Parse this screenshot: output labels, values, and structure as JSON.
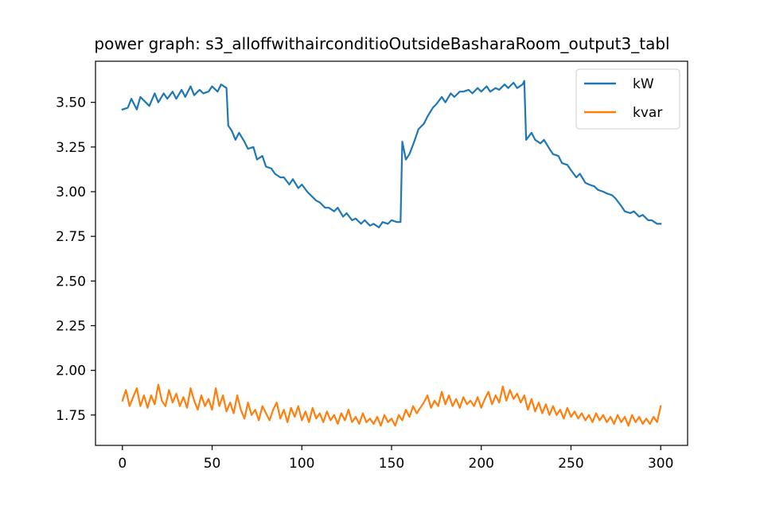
{
  "chart_data": {
    "type": "line",
    "title": "power graph: s3_alloffwithairconditioOutsideBasharaRoom_output3_tabl",
    "xlabel": "",
    "ylabel": "",
    "xlim": [
      -15,
      315
    ],
    "ylim": [
      1.58,
      3.73
    ],
    "xticks": [
      0,
      50,
      100,
      150,
      200,
      250,
      300
    ],
    "xtick_labels": [
      "0",
      "50",
      "100",
      "150",
      "200",
      "250",
      "300"
    ],
    "yticks": [
      1.75,
      2.0,
      2.25,
      2.5,
      2.75,
      3.0,
      3.25,
      3.5
    ],
    "ytick_labels": [
      "1.75",
      "2.00",
      "2.25",
      "2.50",
      "2.75",
      "3.00",
      "3.25",
      "3.50"
    ],
    "grid": false,
    "legend_position": "top-right",
    "series": [
      {
        "name": "kW",
        "color": "#1f77b4",
        "points": [
          [
            0,
            3.46
          ],
          [
            3,
            3.47
          ],
          [
            5,
            3.52
          ],
          [
            8,
            3.46
          ],
          [
            10,
            3.53
          ],
          [
            13,
            3.5
          ],
          [
            15,
            3.48
          ],
          [
            18,
            3.55
          ],
          [
            20,
            3.5
          ],
          [
            23,
            3.55
          ],
          [
            25,
            3.52
          ],
          [
            28,
            3.56
          ],
          [
            30,
            3.52
          ],
          [
            33,
            3.57
          ],
          [
            35,
            3.53
          ],
          [
            38,
            3.59
          ],
          [
            40,
            3.54
          ],
          [
            43,
            3.57
          ],
          [
            45,
            3.55
          ],
          [
            48,
            3.56
          ],
          [
            50,
            3.59
          ],
          [
            53,
            3.56
          ],
          [
            55,
            3.6
          ],
          [
            58,
            3.58
          ],
          [
            59,
            3.37
          ],
          [
            61,
            3.34
          ],
          [
            63,
            3.29
          ],
          [
            65,
            3.33
          ],
          [
            68,
            3.28
          ],
          [
            70,
            3.24
          ],
          [
            73,
            3.25
          ],
          [
            75,
            3.18
          ],
          [
            78,
            3.2
          ],
          [
            80,
            3.14
          ],
          [
            83,
            3.13
          ],
          [
            85,
            3.1
          ],
          [
            88,
            3.08
          ],
          [
            90,
            3.08
          ],
          [
            93,
            3.04
          ],
          [
            95,
            3.07
          ],
          [
            98,
            3.02
          ],
          [
            100,
            3.04
          ],
          [
            103,
            3.0
          ],
          [
            105,
            2.98
          ],
          [
            108,
            2.95
          ],
          [
            110,
            2.94
          ],
          [
            113,
            2.91
          ],
          [
            115,
            2.91
          ],
          [
            118,
            2.89
          ],
          [
            120,
            2.91
          ],
          [
            123,
            2.86
          ],
          [
            125,
            2.88
          ],
          [
            128,
            2.84
          ],
          [
            130,
            2.85
          ],
          [
            133,
            2.82
          ],
          [
            135,
            2.84
          ],
          [
            138,
            2.81
          ],
          [
            140,
            2.82
          ],
          [
            143,
            2.8
          ],
          [
            145,
            2.83
          ],
          [
            148,
            2.82
          ],
          [
            150,
            2.84
          ],
          [
            153,
            2.83
          ],
          [
            155,
            2.83
          ],
          [
            156,
            3.28
          ],
          [
            158,
            3.18
          ],
          [
            160,
            3.21
          ],
          [
            163,
            3.29
          ],
          [
            165,
            3.35
          ],
          [
            168,
            3.38
          ],
          [
            170,
            3.42
          ],
          [
            173,
            3.47
          ],
          [
            175,
            3.49
          ],
          [
            178,
            3.53
          ],
          [
            180,
            3.5
          ],
          [
            183,
            3.55
          ],
          [
            185,
            3.53
          ],
          [
            188,
            3.56
          ],
          [
            190,
            3.56
          ],
          [
            193,
            3.57
          ],
          [
            195,
            3.55
          ],
          [
            198,
            3.58
          ],
          [
            200,
            3.56
          ],
          [
            203,
            3.59
          ],
          [
            205,
            3.56
          ],
          [
            208,
            3.58
          ],
          [
            210,
            3.57
          ],
          [
            213,
            3.6
          ],
          [
            215,
            3.58
          ],
          [
            218,
            3.61
          ],
          [
            220,
            3.58
          ],
          [
            223,
            3.6
          ],
          [
            224,
            3.62
          ],
          [
            225,
            3.29
          ],
          [
            228,
            3.33
          ],
          [
            230,
            3.29
          ],
          [
            233,
            3.27
          ],
          [
            235,
            3.29
          ],
          [
            238,
            3.24
          ],
          [
            240,
            3.21
          ],
          [
            243,
            3.2
          ],
          [
            245,
            3.16
          ],
          [
            248,
            3.15
          ],
          [
            250,
            3.12
          ],
          [
            253,
            3.08
          ],
          [
            255,
            3.1
          ],
          [
            258,
            3.05
          ],
          [
            260,
            3.04
          ],
          [
            263,
            3.03
          ],
          [
            265,
            3.01
          ],
          [
            268,
            3.0
          ],
          [
            270,
            2.99
          ],
          [
            273,
            2.98
          ],
          [
            275,
            2.96
          ],
          [
            278,
            2.92
          ],
          [
            280,
            2.89
          ],
          [
            283,
            2.88
          ],
          [
            285,
            2.89
          ],
          [
            288,
            2.86
          ],
          [
            290,
            2.87
          ],
          [
            293,
            2.84
          ],
          [
            295,
            2.84
          ],
          [
            298,
            2.82
          ],
          [
            300,
            2.82
          ]
        ]
      },
      {
        "name": "kvar",
        "color": "#ff7f0e",
        "points": [
          [
            0,
            1.83
          ],
          [
            2,
            1.89
          ],
          [
            4,
            1.8
          ],
          [
            6,
            1.85
          ],
          [
            8,
            1.9
          ],
          [
            10,
            1.8
          ],
          [
            12,
            1.86
          ],
          [
            14,
            1.79
          ],
          [
            16,
            1.86
          ],
          [
            18,
            1.81
          ],
          [
            20,
            1.92
          ],
          [
            22,
            1.83
          ],
          [
            24,
            1.8
          ],
          [
            26,
            1.89
          ],
          [
            28,
            1.82
          ],
          [
            30,
            1.87
          ],
          [
            32,
            1.8
          ],
          [
            34,
            1.85
          ],
          [
            36,
            1.79
          ],
          [
            38,
            1.9
          ],
          [
            40,
            1.83
          ],
          [
            42,
            1.78
          ],
          [
            44,
            1.86
          ],
          [
            46,
            1.8
          ],
          [
            48,
            1.84
          ],
          [
            50,
            1.78
          ],
          [
            52,
            1.9
          ],
          [
            54,
            1.8
          ],
          [
            56,
            1.86
          ],
          [
            58,
            1.77
          ],
          [
            60,
            1.82
          ],
          [
            62,
            1.76
          ],
          [
            64,
            1.86
          ],
          [
            66,
            1.78
          ],
          [
            68,
            1.73
          ],
          [
            70,
            1.82
          ],
          [
            72,
            1.75
          ],
          [
            74,
            1.78
          ],
          [
            76,
            1.72
          ],
          [
            78,
            1.8
          ],
          [
            80,
            1.76
          ],
          [
            82,
            1.72
          ],
          [
            84,
            1.78
          ],
          [
            86,
            1.82
          ],
          [
            88,
            1.73
          ],
          [
            90,
            1.78
          ],
          [
            92,
            1.71
          ],
          [
            94,
            1.79
          ],
          [
            96,
            1.74
          ],
          [
            98,
            1.8
          ],
          [
            100,
            1.72
          ],
          [
            102,
            1.77
          ],
          [
            104,
            1.71
          ],
          [
            106,
            1.79
          ],
          [
            108,
            1.73
          ],
          [
            110,
            1.76
          ],
          [
            112,
            1.71
          ],
          [
            114,
            1.77
          ],
          [
            116,
            1.72
          ],
          [
            118,
            1.75
          ],
          [
            120,
            1.7
          ],
          [
            122,
            1.76
          ],
          [
            124,
            1.72
          ],
          [
            126,
            1.78
          ],
          [
            128,
            1.71
          ],
          [
            130,
            1.74
          ],
          [
            132,
            1.7
          ],
          [
            134,
            1.76
          ],
          [
            136,
            1.71
          ],
          [
            138,
            1.73
          ],
          [
            140,
            1.7
          ],
          [
            142,
            1.74
          ],
          [
            144,
            1.69
          ],
          [
            146,
            1.75
          ],
          [
            148,
            1.71
          ],
          [
            150,
            1.73
          ],
          [
            152,
            1.69
          ],
          [
            154,
            1.75
          ],
          [
            156,
            1.72
          ],
          [
            158,
            1.78
          ],
          [
            160,
            1.74
          ],
          [
            162,
            1.8
          ],
          [
            164,
            1.76
          ],
          [
            166,
            1.79
          ],
          [
            168,
            1.82
          ],
          [
            170,
            1.86
          ],
          [
            172,
            1.79
          ],
          [
            174,
            1.83
          ],
          [
            176,
            1.8
          ],
          [
            178,
            1.88
          ],
          [
            180,
            1.81
          ],
          [
            182,
            1.86
          ],
          [
            184,
            1.8
          ],
          [
            186,
            1.84
          ],
          [
            188,
            1.79
          ],
          [
            190,
            1.85
          ],
          [
            192,
            1.81
          ],
          [
            194,
            1.83
          ],
          [
            196,
            1.8
          ],
          [
            198,
            1.85
          ],
          [
            200,
            1.79
          ],
          [
            202,
            1.84
          ],
          [
            204,
            1.88
          ],
          [
            206,
            1.81
          ],
          [
            208,
            1.86
          ],
          [
            210,
            1.82
          ],
          [
            212,
            1.91
          ],
          [
            214,
            1.83
          ],
          [
            216,
            1.89
          ],
          [
            218,
            1.84
          ],
          [
            220,
            1.87
          ],
          [
            222,
            1.82
          ],
          [
            224,
            1.86
          ],
          [
            226,
            1.78
          ],
          [
            228,
            1.84
          ],
          [
            230,
            1.77
          ],
          [
            232,
            1.82
          ],
          [
            234,
            1.76
          ],
          [
            236,
            1.81
          ],
          [
            238,
            1.75
          ],
          [
            240,
            1.8
          ],
          [
            242,
            1.75
          ],
          [
            244,
            1.78
          ],
          [
            246,
            1.73
          ],
          [
            248,
            1.79
          ],
          [
            250,
            1.74
          ],
          [
            252,
            1.77
          ],
          [
            254,
            1.73
          ],
          [
            256,
            1.76
          ],
          [
            258,
            1.72
          ],
          [
            260,
            1.75
          ],
          [
            262,
            1.71
          ],
          [
            264,
            1.76
          ],
          [
            266,
            1.72
          ],
          [
            268,
            1.75
          ],
          [
            270,
            1.71
          ],
          [
            272,
            1.74
          ],
          [
            274,
            1.7
          ],
          [
            276,
            1.75
          ],
          [
            278,
            1.71
          ],
          [
            280,
            1.74
          ],
          [
            282,
            1.69
          ],
          [
            284,
            1.75
          ],
          [
            286,
            1.71
          ],
          [
            288,
            1.74
          ],
          [
            290,
            1.7
          ],
          [
            292,
            1.73
          ],
          [
            294,
            1.7
          ],
          [
            296,
            1.74
          ],
          [
            298,
            1.71
          ],
          [
            300,
            1.8
          ]
        ]
      }
    ]
  }
}
